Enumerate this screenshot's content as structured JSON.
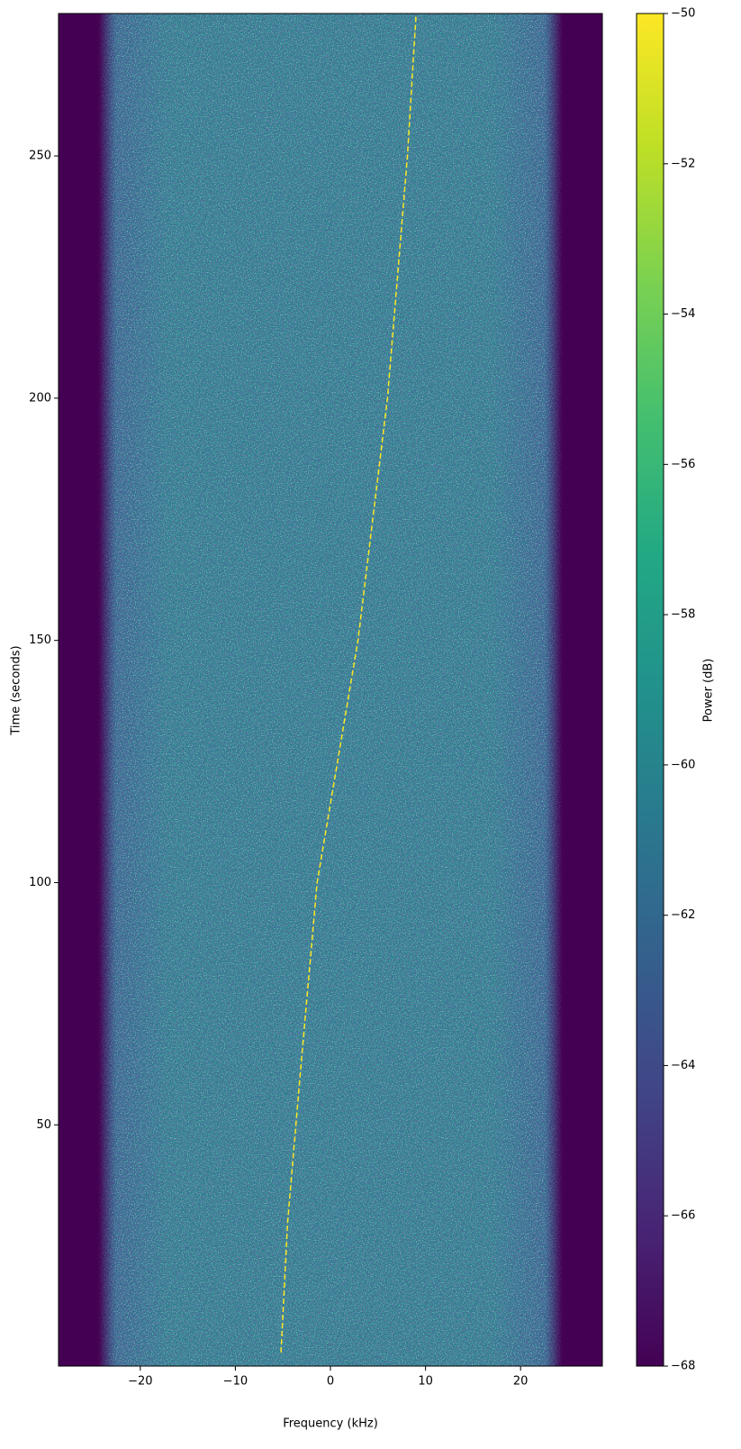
{
  "chart_data": {
    "type": "spectrogram",
    "x_label": "Frequency (kHz)",
    "y_label": "Time (seconds)",
    "colorbar_label": "Power (dB)",
    "colormap": "viridis",
    "clim": [
      -68,
      -50
    ],
    "xlim": [
      -28.6,
      28.6
    ],
    "ylim": [
      0.2,
      279.4
    ],
    "xticks": [
      {
        "value": -20,
        "label": "−20"
      },
      {
        "value": -10,
        "label": "−10"
      },
      0,
      10,
      20
    ],
    "yticks": [
      50,
      100,
      150,
      200,
      250
    ],
    "cticks": [
      {
        "value": -68,
        "label": "−68"
      },
      {
        "value": -66,
        "label": "−66"
      },
      {
        "value": -64,
        "label": "−64"
      },
      {
        "value": -62,
        "label": "−62"
      },
      {
        "value": -60,
        "label": "−60"
      },
      {
        "value": -58,
        "label": "−58"
      },
      {
        "value": -56,
        "label": "−56"
      },
      {
        "value": -54,
        "label": "−54"
      },
      {
        "value": -52,
        "label": "−52"
      },
      {
        "value": -50,
        "label": "−50"
      }
    ],
    "signal": {
      "x": [
        -5.2,
        -4.5,
        -3.2,
        -1.4,
        2.9,
        6.0,
        8.1,
        9.0
      ],
      "y": [
        3,
        30,
        60,
        100,
        150,
        200,
        250,
        279
      ],
      "power": -50
    }
  }
}
